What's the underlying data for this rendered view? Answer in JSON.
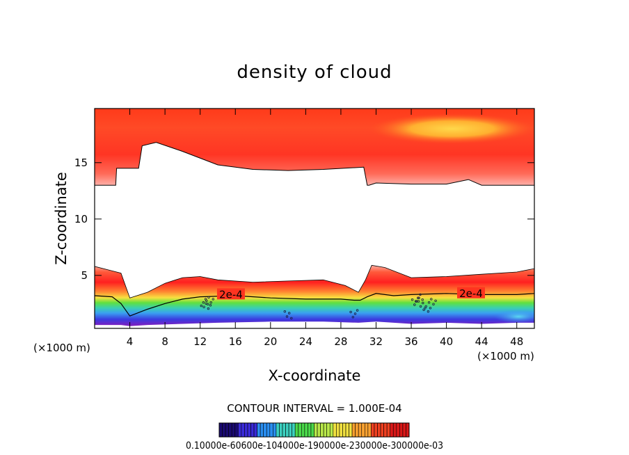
{
  "chart_data": {
    "type": "heatmap",
    "title": "density of cloud",
    "xlabel": "X-coordinate",
    "ylabel": "Z-coordinate",
    "x_unit": "(×1000 m)",
    "xlim": [
      0,
      50
    ],
    "ylim": [
      0.3,
      19.8
    ],
    "x_ticks": [
      4,
      8,
      12,
      16,
      20,
      24,
      28,
      32,
      36,
      40,
      44,
      48
    ],
    "y_ticks": [
      5,
      10,
      15
    ],
    "contour_interval": "CONTOUR INTERVAL = 1.000E-04",
    "contour_labels": [
      {
        "text": "2e-4",
        "x": 15.5,
        "z": 3.3
      },
      {
        "text": "2e-4",
        "x": 42.8,
        "z": 3.4
      }
    ],
    "colorbar_label_text": "0.10000e-60600e-104000e-190000e-230000e-300000e-03",
    "colorbar_colors": [
      "#1a0a70",
      "#3a2ad8",
      "#2a8ef0",
      "#3cd0c0",
      "#4ad84a",
      "#b8e84a",
      "#f0e040",
      "#f8a030",
      "#f04020",
      "#d81818"
    ],
    "upper_cloud_lower_edge": {
      "x": [
        0,
        2.4,
        2.5,
        2.6,
        5.0,
        5.4,
        7.0,
        10,
        14,
        18,
        22,
        26,
        30.6,
        31.0,
        31.2,
        32,
        36,
        40,
        42.5,
        44,
        46,
        50
      ],
      "z": [
        13.0,
        13.0,
        14.5,
        14.5,
        14.5,
        16.5,
        16.8,
        16.0,
        14.8,
        14.4,
        14.3,
        14.4,
        14.6,
        13.0,
        13.0,
        13.2,
        13.1,
        13.1,
        13.5,
        13.0,
        13.0,
        13.0
      ]
    },
    "lower_cloud_top": {
      "x": [
        0,
        2,
        3,
        4,
        6,
        8,
        10,
        12,
        14,
        18,
        22,
        26,
        28.5,
        30,
        30.8,
        31.5,
        33,
        36,
        40,
        44,
        48,
        50
      ],
      "z": [
        5.8,
        5.4,
        5.2,
        3.0,
        3.5,
        4.3,
        4.8,
        4.9,
        4.6,
        4.4,
        4.5,
        4.6,
        4.1,
        3.5,
        4.6,
        5.9,
        5.7,
        4.8,
        4.9,
        5.1,
        5.3,
        5.6
      ]
    },
    "contour_2e-4": {
      "x": [
        0,
        2,
        3,
        4,
        6,
        8,
        10,
        12,
        16,
        20,
        24,
        28,
        29.5,
        30.2,
        31,
        32,
        34,
        36,
        40,
        44,
        48,
        50
      ],
      "z": [
        3.2,
        3.1,
        2.5,
        1.4,
        2.0,
        2.5,
        2.9,
        3.1,
        3.2,
        3.0,
        2.9,
        2.9,
        2.8,
        2.8,
        3.1,
        3.4,
        3.2,
        3.3,
        3.4,
        3.3,
        3.3,
        3.4
      ]
    },
    "cloud_base": {
      "x": [
        0,
        3,
        4,
        6,
        10,
        14,
        20,
        26,
        30,
        32,
        36,
        40,
        44,
        48,
        50
      ],
      "z": [
        0.6,
        0.6,
        0.5,
        0.6,
        0.7,
        0.8,
        0.9,
        0.9,
        0.8,
        0.9,
        0.7,
        0.8,
        0.7,
        0.8,
        0.8
      ]
    }
  }
}
